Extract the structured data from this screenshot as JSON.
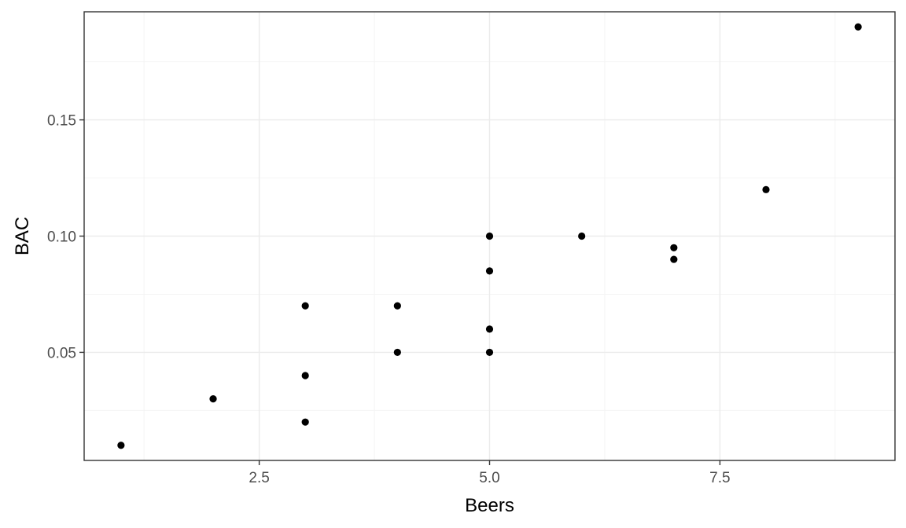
{
  "chart_data": {
    "type": "scatter",
    "xlabel": "Beers",
    "ylabel": "BAC",
    "xlim": [
      0.6,
      9.4
    ],
    "ylim": [
      0.0035,
      0.1965
    ],
    "x_ticks": [
      2.5,
      5.0,
      7.5
    ],
    "x_tick_labels": [
      "2.5",
      "5.0",
      "7.5"
    ],
    "x_minor_ticks": [
      1.25,
      3.75,
      6.25,
      8.75
    ],
    "y_ticks": [
      0.05,
      0.1,
      0.15
    ],
    "y_tick_labels": [
      "0.05",
      "0.10",
      "0.15"
    ],
    "y_minor_ticks": [
      0.025,
      0.075,
      0.125,
      0.175
    ],
    "grid": true,
    "points": [
      {
        "x": 1,
        "y": 0.01
      },
      {
        "x": 2,
        "y": 0.03
      },
      {
        "x": 3,
        "y": 0.02
      },
      {
        "x": 3,
        "y": 0.04
      },
      {
        "x": 3,
        "y": 0.07
      },
      {
        "x": 4,
        "y": 0.05
      },
      {
        "x": 4,
        "y": 0.07
      },
      {
        "x": 5,
        "y": 0.05
      },
      {
        "x": 5,
        "y": 0.06
      },
      {
        "x": 5,
        "y": 0.085
      },
      {
        "x": 5,
        "y": 0.1
      },
      {
        "x": 6,
        "y": 0.1
      },
      {
        "x": 7,
        "y": 0.09
      },
      {
        "x": 7,
        "y": 0.095
      },
      {
        "x": 8,
        "y": 0.12
      },
      {
        "x": 9,
        "y": 0.19
      }
    ],
    "colors": {
      "point": "#000000",
      "panel_border": "#333333",
      "major_grid": "#ebebeb",
      "minor_grid": "#f4f4f4"
    }
  }
}
